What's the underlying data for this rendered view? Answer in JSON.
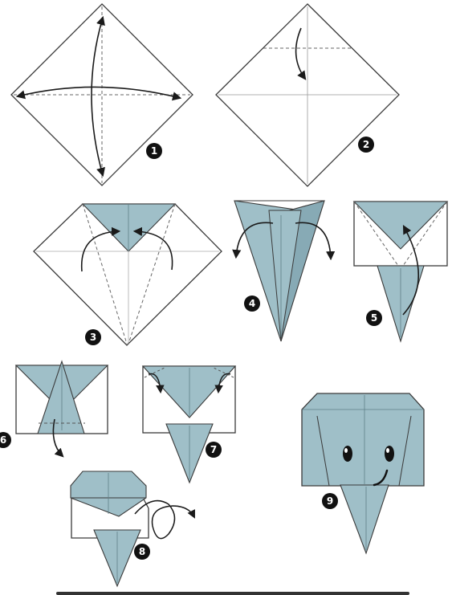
{
  "colors": {
    "paper": "#9fbfc8",
    "paper_dark": "#87aab5",
    "outline": "#3a3a3a",
    "fold_line": "#5a5a5a",
    "badge": "#111111",
    "badge_text": "#ffffff",
    "background": "#ffffff"
  },
  "steps": [
    {
      "number": "1"
    },
    {
      "number": "2"
    },
    {
      "number": "3"
    },
    {
      "number": "4"
    },
    {
      "number": "5"
    },
    {
      "number": "6"
    },
    {
      "number": "7"
    },
    {
      "number": "8"
    },
    {
      "number": "9"
    }
  ]
}
